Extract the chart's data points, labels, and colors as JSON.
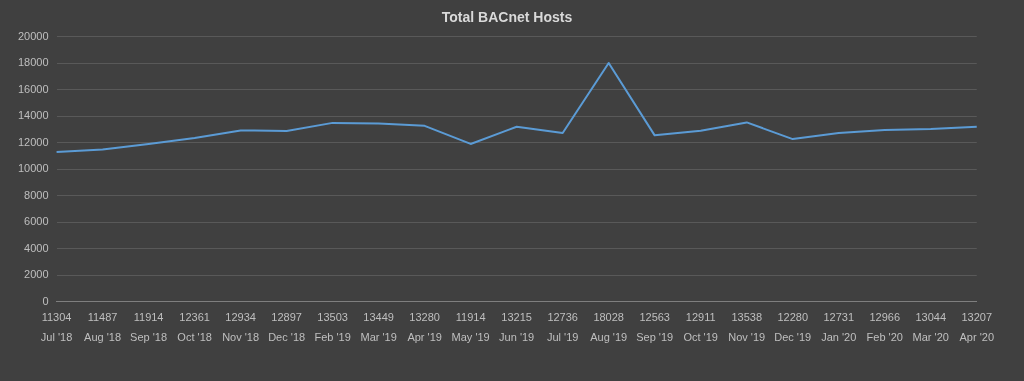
{
  "chart_data": {
    "type": "line",
    "title": "Total BACnet Hosts",
    "categories": [
      "Jul '18",
      "Aug '18",
      "Sep '18",
      "Oct '18",
      "Nov '18",
      "Dec '18",
      "Feb '19",
      "Mar '19",
      "Apr '19",
      "May '19",
      "Jun '19",
      "Jul '19",
      "Aug '19",
      "Sep '19",
      "Oct '19",
      "Nov '19",
      "Dec '19",
      "Jan '20",
      "Feb '20",
      "Mar '20",
      "Apr '20"
    ],
    "series": [
      {
        "color": "#5b9bd5",
        "values": [
          11304,
          11487,
          11914,
          12361,
          12934,
          12897,
          13503,
          13449,
          13280,
          11914,
          13215,
          12736,
          18028,
          12563,
          12911,
          13538,
          12280,
          12731,
          12966,
          13044,
          13207
        ]
      }
    ],
    "ylim": [
      0,
      20000
    ],
    "yticks": [
      0,
      2000,
      4000,
      6000,
      8000,
      10000,
      12000,
      14000,
      16000,
      18000,
      20000
    ],
    "grid": "y",
    "legend": false,
    "marker": "none",
    "line_style": "solid",
    "data_labels": true
  }
}
